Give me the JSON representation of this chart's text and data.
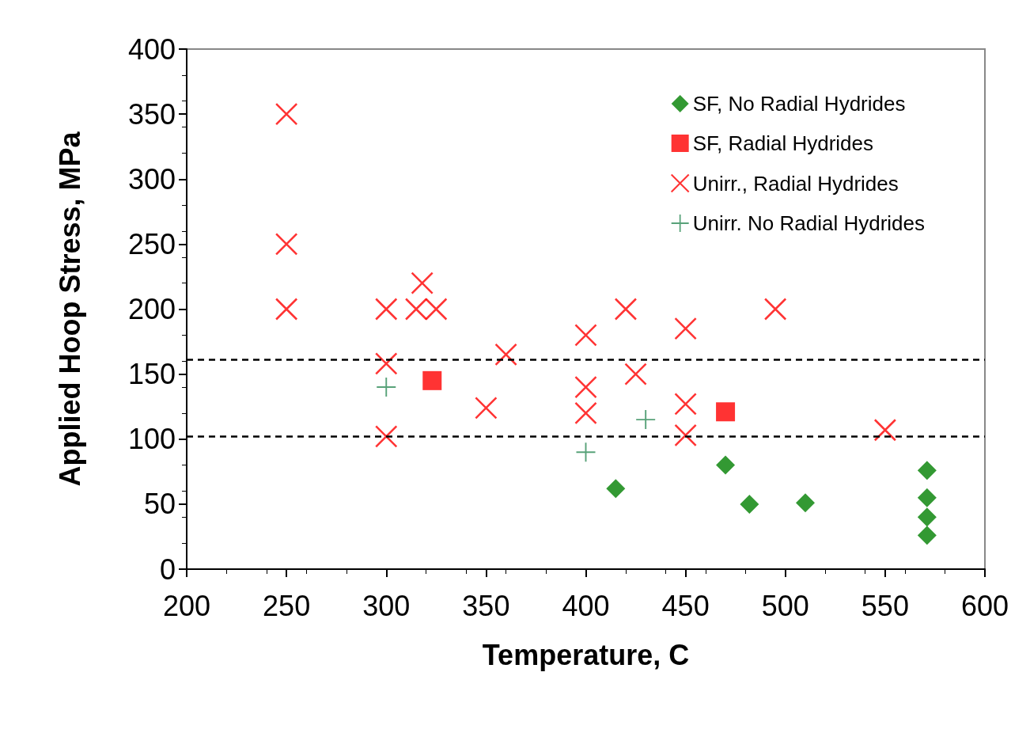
{
  "chart_data": {
    "type": "scatter",
    "xlabel": "Temperature, C",
    "ylabel": "Applied Hoop Stress, MPa",
    "xlim": [
      200,
      600
    ],
    "xticks": [
      200,
      250,
      300,
      350,
      400,
      450,
      500,
      550,
      600
    ],
    "ylim": [
      0,
      400
    ],
    "yticks": [
      0,
      50,
      100,
      150,
      200,
      250,
      300,
      350,
      400
    ],
    "grid": false,
    "legend": "top right",
    "series": [
      {
        "name": "SF, No Radial Hydrides",
        "color": "#008000",
        "marker": "diamond",
        "x": [
          415,
          470,
          482,
          510,
          571,
          571,
          571,
          571
        ],
        "values": [
          62,
          80,
          50,
          51,
          76,
          55,
          40,
          26
        ]
      },
      {
        "name": "SF, Radial Hydrides",
        "color": "#ff0000",
        "marker": "square",
        "x": [
          323,
          470
        ],
        "values": [
          145,
          121
        ]
      },
      {
        "name": "Unirr., Radial Hydrides",
        "color": "#ff0000",
        "marker": "cross",
        "x": [
          250,
          250,
          250,
          300,
          300,
          300,
          315,
          318,
          325,
          350,
          360,
          400,
          400,
          400,
          420,
          425,
          450,
          450,
          450,
          495,
          550
        ],
        "values": [
          350,
          250,
          200,
          200,
          158,
          102,
          200,
          220,
          200,
          124,
          165,
          180,
          140,
          120,
          200,
          150,
          185,
          127,
          103,
          200,
          107
        ]
      },
      {
        "name": "Unirr. No Radial Hydrides",
        "color": "#2e8b57",
        "x": [
          300,
          400,
          430
        ],
        "values": [
          140,
          90,
          115
        ]
      }
    ],
    "ref_lines": [
      {
        "axis": "y",
        "value": 161,
        "line_style": "dashed"
      },
      {
        "axis": "y",
        "value": 102,
        "line_style": "dashed"
      }
    ]
  }
}
